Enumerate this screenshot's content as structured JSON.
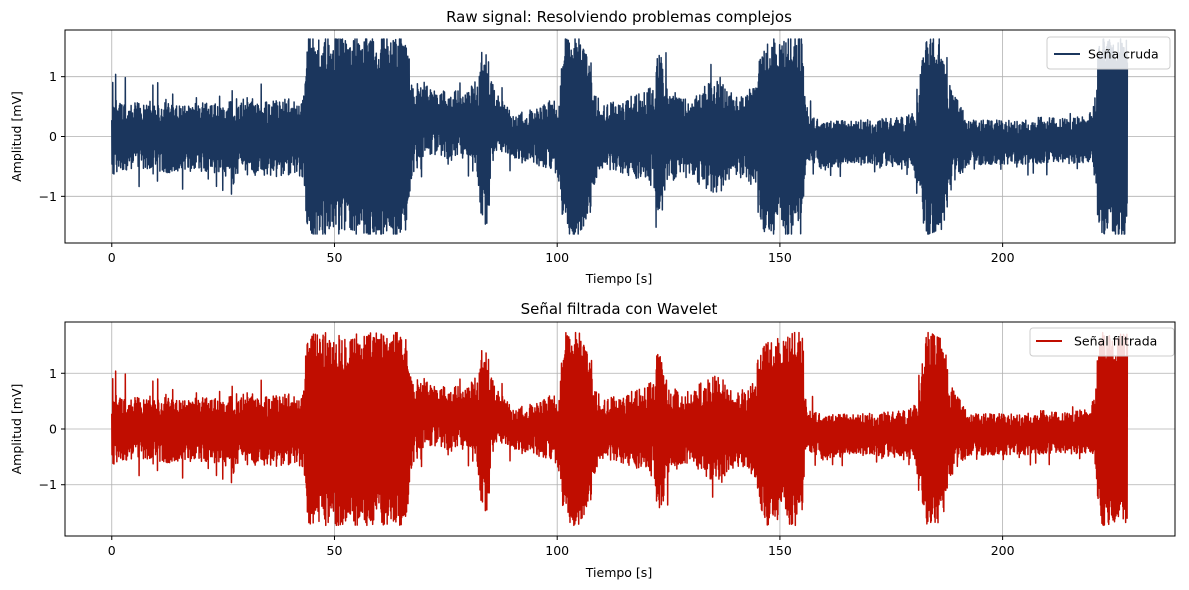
{
  "chart_data": [
    {
      "type": "line",
      "title": "Raw signal: Resolviendo problemas complejos",
      "xlabel": "Tiempo [s]",
      "ylabel": "Amplitud [mV]",
      "xlim": [
        -10.5,
        238.7
      ],
      "ylim": [
        -1.78,
        1.78
      ],
      "xticks": [
        0,
        50,
        100,
        150,
        200
      ],
      "xtick_labels": [
        "0",
        "50",
        "100",
        "150",
        "200"
      ],
      "yticks": [
        -1,
        0,
        1
      ],
      "ytick_labels": [
        "−1",
        "0",
        "1"
      ],
      "grid": true,
      "legend_position": "upper-right",
      "series": [
        {
          "name": "Seña cruda",
          "color": "#1b365d",
          "clip": 1.63,
          "x": [
            0,
            5,
            10,
            15,
            20,
            25,
            27,
            30,
            33,
            36,
            40,
            43,
            44,
            47,
            50,
            55,
            58,
            62,
            64,
            66,
            67,
            70,
            73,
            76,
            80,
            84,
            86,
            90,
            95,
            100,
            102,
            104,
            106,
            110,
            113,
            116,
            120,
            123,
            126,
            130,
            132,
            136,
            140,
            144,
            147,
            150,
            153,
            155,
            156,
            160,
            165,
            170,
            175,
            180,
            183,
            186,
            188,
            192,
            196,
            200,
            205,
            210,
            215,
            220,
            222,
            224,
            226,
            228
          ],
          "envelope": [
            0.85,
            0.75,
            0.8,
            0.75,
            0.75,
            0.8,
            0.95,
            0.9,
            0.85,
            0.85,
            0.85,
            0.9,
            1.7,
            1.7,
            1.7,
            1.7,
            1.7,
            1.7,
            1.7,
            1.7,
            1.2,
            0.85,
            0.7,
            0.8,
            0.75,
            1.6,
            0.7,
            0.5,
            0.6,
            0.9,
            1.7,
            1.7,
            1.7,
            0.7,
            0.8,
            0.9,
            1.0,
            1.4,
            1.0,
            0.8,
            1.1,
            1.3,
            0.9,
            1.1,
            1.7,
            1.6,
            1.7,
            1.7,
            0.5,
            0.55,
            0.5,
            0.5,
            0.55,
            0.65,
            1.7,
            1.7,
            1.2,
            0.5,
            0.5,
            0.5,
            0.5,
            0.55,
            0.5,
            0.55,
            1.7,
            1.7,
            1.7,
            1.7
          ],
          "base": [
            0.0,
            0.0,
            0.0,
            -0.05,
            0.0,
            -0.05,
            -0.1,
            0.0,
            -0.05,
            -0.05,
            0.0,
            0.0,
            0.0,
            0.0,
            0.0,
            0.0,
            0.0,
            0.0,
            0.0,
            0.0,
            0.0,
            0.3,
            0.25,
            0.2,
            0.2,
            0.0,
            0.3,
            0.0,
            0.0,
            0.0,
            0.0,
            0.0,
            0.0,
            0.0,
            0.0,
            0.0,
            0.0,
            0.0,
            0.0,
            0.0,
            0.0,
            0.0,
            0.0,
            0.0,
            0.0,
            0.0,
            0.0,
            0.0,
            0.0,
            -0.15,
            -0.1,
            -0.1,
            -0.1,
            -0.1,
            0.0,
            0.0,
            0.0,
            -0.1,
            -0.1,
            -0.1,
            -0.1,
            -0.05,
            -0.1,
            0.0,
            0.0,
            0.0,
            0.0,
            0.0
          ]
        }
      ]
    },
    {
      "type": "line",
      "title": "Señal filtrada con Wavelet",
      "xlabel": "Tiempo [s]",
      "ylabel": "Amplitud [mV]",
      "xlim": [
        -10.5,
        238.7
      ],
      "ylim": [
        -1.92,
        1.92
      ],
      "xticks": [
        0,
        50,
        100,
        150,
        200
      ],
      "xtick_labels": [
        "0",
        "50",
        "100",
        "150",
        "200"
      ],
      "yticks": [
        -1,
        0,
        1
      ],
      "ytick_labels": [
        "−1",
        "0",
        "1"
      ],
      "grid": true,
      "legend_position": "upper-right",
      "series": [
        {
          "name": "Señal filtrada",
          "color": "#c00d00",
          "clip": 1.73,
          "x": [
            0,
            5,
            10,
            15,
            20,
            25,
            27,
            30,
            33,
            36,
            40,
            43,
            44,
            47,
            50,
            55,
            58,
            62,
            64,
            66,
            67,
            70,
            73,
            76,
            80,
            84,
            86,
            90,
            95,
            100,
            102,
            104,
            106,
            110,
            113,
            116,
            120,
            123,
            126,
            130,
            132,
            136,
            140,
            144,
            147,
            150,
            153,
            155,
            156,
            160,
            165,
            170,
            175,
            180,
            183,
            186,
            188,
            192,
            196,
            200,
            205,
            210,
            215,
            220,
            222,
            224,
            226,
            228
          ],
          "envelope": [
            0.85,
            0.75,
            0.8,
            0.75,
            0.75,
            0.8,
            0.95,
            0.9,
            0.85,
            0.85,
            0.85,
            0.9,
            1.75,
            1.75,
            1.75,
            1.75,
            1.75,
            1.75,
            1.75,
            1.75,
            1.2,
            0.85,
            0.7,
            0.8,
            0.75,
            1.6,
            0.7,
            0.5,
            0.6,
            0.9,
            1.75,
            1.75,
            1.75,
            0.7,
            0.8,
            0.9,
            1.0,
            1.45,
            1.0,
            0.8,
            1.1,
            1.3,
            0.9,
            1.1,
            1.75,
            1.6,
            1.75,
            1.75,
            0.5,
            0.55,
            0.5,
            0.5,
            0.55,
            0.65,
            1.75,
            1.75,
            1.2,
            0.5,
            0.5,
            0.5,
            0.5,
            0.55,
            0.5,
            0.55,
            1.75,
            1.75,
            1.75,
            1.75
          ],
          "base": [
            0.0,
            0.0,
            0.0,
            -0.05,
            0.0,
            -0.05,
            -0.1,
            0.0,
            -0.05,
            -0.05,
            0.0,
            0.0,
            0.0,
            0.0,
            0.0,
            0.0,
            0.0,
            0.0,
            0.0,
            0.0,
            0.0,
            0.3,
            0.25,
            0.2,
            0.2,
            0.0,
            0.3,
            0.0,
            0.0,
            0.0,
            0.0,
            0.0,
            0.0,
            0.0,
            0.0,
            0.0,
            0.0,
            0.0,
            0.0,
            0.0,
            0.0,
            0.0,
            0.0,
            0.0,
            0.0,
            0.0,
            0.0,
            0.0,
            0.0,
            -0.15,
            -0.1,
            -0.1,
            -0.1,
            -0.1,
            0.0,
            0.0,
            0.0,
            -0.1,
            -0.1,
            -0.1,
            -0.1,
            -0.05,
            -0.1,
            0.0,
            0.0,
            0.0,
            0.0,
            0.0
          ]
        }
      ]
    }
  ]
}
